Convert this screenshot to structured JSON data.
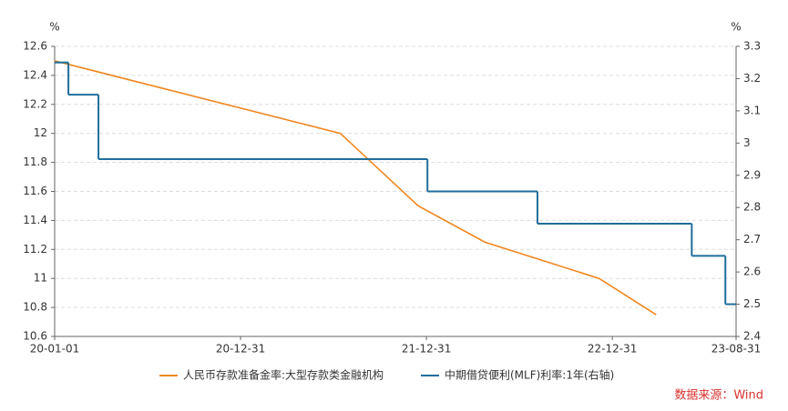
{
  "chart_data": {
    "type": "line",
    "y_unit": "%",
    "y2_unit": "%",
    "xlim": [
      "20-01-01",
      "23-08-31"
    ],
    "xticks": [
      "20-01-01",
      "20-12-31",
      "21-12-31",
      "22-12-31",
      "23-08-31"
    ],
    "ylim": [
      10.6,
      12.6
    ],
    "yticks": [
      10.6,
      10.8,
      11,
      11.2,
      11.4,
      11.6,
      11.8,
      12,
      12.2,
      12.4,
      12.6
    ],
    "y2lim": [
      2.4,
      3.3
    ],
    "y2ticks": [
      2.4,
      2.5,
      2.6,
      2.7,
      2.8,
      2.9,
      3,
      3.1,
      3.2,
      3.3
    ],
    "grid": true,
    "series": [
      {
        "name": "人民币存款准备金率:大型存款类金融机构",
        "color": "#f0861f",
        "step": false,
        "x": [
          "20-01-01",
          "21-07-15",
          "21-12-15",
          "22-04-25",
          "22-12-05",
          "23-03-27"
        ],
        "values": [
          12.5,
          12.0,
          11.5,
          11.25,
          11.0,
          10.75
        ]
      },
      {
        "name": "中期借贷便利(MLF)利率:1年(右轴)",
        "color": "#1f6e9a",
        "axis": "y2",
        "step": true,
        "x": [
          "20-01-01",
          "20-01-28",
          "20-03-27",
          "22-01-02",
          "22-08-06",
          "23-06-05",
          "23-08-10"
        ],
        "values": [
          3.25,
          3.15,
          2.95,
          2.85,
          2.75,
          2.65,
          2.5
        ]
      }
    ],
    "source": "数据来源：Wind"
  }
}
